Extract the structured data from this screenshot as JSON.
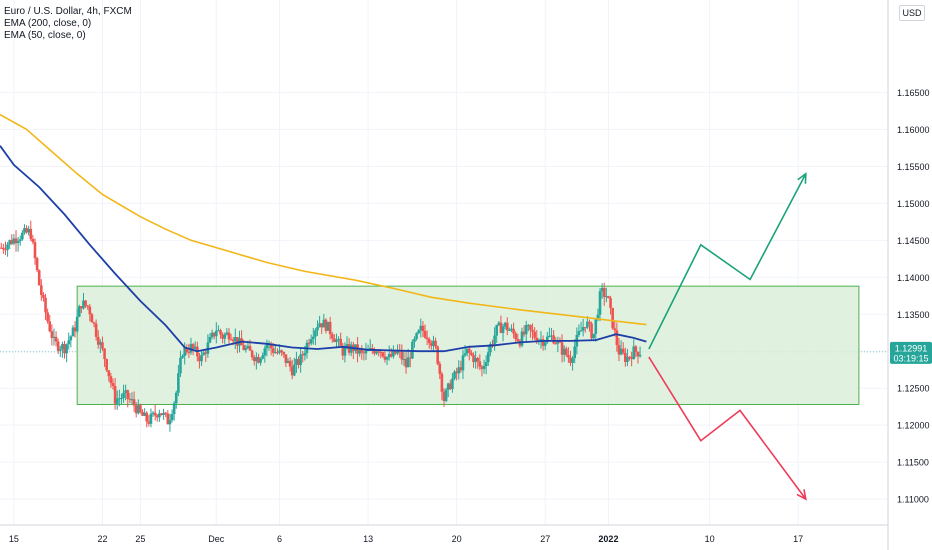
{
  "legend": {
    "title": "Euro / U.S. Dollar, 4h, FXCM",
    "ema200": "EMA (200, close, 0)",
    "ema50": "EMA (50, close, 0)"
  },
  "currency_label": "USD",
  "price_label": {
    "price": "1.12991",
    "countdown": "03:19:15",
    "color": "#26a69a"
  },
  "colors": {
    "up": "#26a69a",
    "down": "#ef5350",
    "ema200": "#f2b619",
    "ema50": "#1c3fa8",
    "box_fill": "#d8eed7",
    "box_border": "#4caf50",
    "bull_arrow": "#1aa37a",
    "bear_arrow": "#ef3b5a"
  },
  "chart_data": {
    "type": "candlestick",
    "symbol": "EURUSD",
    "timeframe": "4h",
    "ylim": [
      1.1065,
      1.1775
    ],
    "y_ticks": [
      "1.11000",
      "1.11500",
      "1.12000",
      "1.12500",
      "1.13000",
      "1.13500",
      "1.14000",
      "1.14500",
      "1.15000",
      "1.15500",
      "1.16000",
      "1.16500"
    ],
    "x_ticks": [
      {
        "label": "15",
        "day": 0
      },
      {
        "label": "22",
        "day": 7
      },
      {
        "label": "25",
        "day": 10
      },
      {
        "label": "Dec",
        "day": 16
      },
      {
        "label": "6",
        "day": 21
      },
      {
        "label": "13",
        "day": 28
      },
      {
        "label": "20",
        "day": 35
      },
      {
        "label": "27",
        "day": 42
      },
      {
        "label": "2022",
        "day": 47,
        "bold": true
      },
      {
        "label": "10",
        "day": 55
      },
      {
        "label": "17",
        "day": 62
      }
    ],
    "x_range_days": [
      -1.1,
      69.1
    ],
    "close_anchors": [
      [
        -1.0,
        1.144
      ],
      [
        0.3,
        1.1455
      ],
      [
        1.3,
        1.1462
      ],
      [
        2.0,
        1.139
      ],
      [
        2.6,
        1.1345
      ],
      [
        3.2,
        1.131
      ],
      [
        4.0,
        1.1305
      ],
      [
        4.8,
        1.133
      ],
      [
        5.3,
        1.1365
      ],
      [
        5.9,
        1.136
      ],
      [
        6.6,
        1.132
      ],
      [
        7.2,
        1.129
      ],
      [
        8.0,
        1.1235
      ],
      [
        8.8,
        1.124
      ],
      [
        9.4,
        1.123
      ],
      [
        10.0,
        1.1215
      ],
      [
        10.6,
        1.1205
      ],
      [
        11.5,
        1.122
      ],
      [
        12.2,
        1.1205
      ],
      [
        12.8,
        1.124
      ],
      [
        13.3,
        1.13
      ],
      [
        14.0,
        1.1305
      ],
      [
        14.8,
        1.129
      ],
      [
        15.4,
        1.131
      ],
      [
        16.0,
        1.133
      ],
      [
        16.5,
        1.132
      ],
      [
        17.1,
        1.1325
      ],
      [
        17.8,
        1.131
      ],
      [
        18.5,
        1.13
      ],
      [
        19.3,
        1.129
      ],
      [
        20.0,
        1.131
      ],
      [
        20.6,
        1.13
      ],
      [
        21.2,
        1.1295
      ],
      [
        22.0,
        1.1275
      ],
      [
        22.7,
        1.129
      ],
      [
        23.4,
        1.132
      ],
      [
        24.1,
        1.134
      ],
      [
        24.7,
        1.1335
      ],
      [
        25.3,
        1.132
      ],
      [
        26.0,
        1.13
      ],
      [
        26.8,
        1.1305
      ],
      [
        27.5,
        1.1295
      ],
      [
        28.2,
        1.13
      ],
      [
        28.8,
        1.1305
      ],
      [
        29.6,
        1.129
      ],
      [
        30.4,
        1.13
      ],
      [
        31.0,
        1.128
      ],
      [
        31.6,
        1.131
      ],
      [
        32.2,
        1.133
      ],
      [
        32.8,
        1.132
      ],
      [
        33.4,
        1.13
      ],
      [
        34.0,
        1.1235
      ],
      [
        34.6,
        1.126
      ],
      [
        35.2,
        1.1275
      ],
      [
        35.8,
        1.13
      ],
      [
        36.4,
        1.129
      ],
      [
        37.0,
        1.1275
      ],
      [
        37.6,
        1.1305
      ],
      [
        38.2,
        1.133
      ],
      [
        38.8,
        1.1335
      ],
      [
        39.4,
        1.1325
      ],
      [
        40.0,
        1.1315
      ],
      [
        40.6,
        1.133
      ],
      [
        41.2,
        1.132
      ],
      [
        41.8,
        1.1315
      ],
      [
        42.6,
        1.132
      ],
      [
        43.4,
        1.13
      ],
      [
        44.0,
        1.129
      ],
      [
        44.6,
        1.132
      ],
      [
        45.2,
        1.134
      ],
      [
        45.8,
        1.132
      ],
      [
        46.4,
        1.138
      ],
      [
        46.9,
        1.1375
      ],
      [
        47.3,
        1.134
      ],
      [
        47.8,
        1.13
      ],
      [
        48.4,
        1.129
      ],
      [
        49.0,
        1.13
      ],
      [
        49.6,
        1.1299
      ]
    ],
    "ema200": [
      [
        -1.1,
        1.162
      ],
      [
        1,
        1.16
      ],
      [
        3,
        1.157
      ],
      [
        5,
        1.154
      ],
      [
        7,
        1.1512
      ],
      [
        10,
        1.1482
      ],
      [
        12,
        1.1465
      ],
      [
        14,
        1.145
      ],
      [
        17,
        1.1435
      ],
      [
        20,
        1.142
      ],
      [
        23,
        1.1408
      ],
      [
        27,
        1.1396
      ],
      [
        30,
        1.1385
      ],
      [
        33,
        1.1373
      ],
      [
        36,
        1.1365
      ],
      [
        40,
        1.1356
      ],
      [
        44,
        1.1348
      ],
      [
        47,
        1.1342
      ],
      [
        50,
        1.1336
      ]
    ],
    "ema50": [
      [
        -1.1,
        1.1578
      ],
      [
        0,
        1.1552
      ],
      [
        2,
        1.1522
      ],
      [
        4,
        1.1485
      ],
      [
        6,
        1.1444
      ],
      [
        8,
        1.1405
      ],
      [
        10,
        1.1368
      ],
      [
        12,
        1.1335
      ],
      [
        13.5,
        1.1305
      ],
      [
        14.5,
        1.13
      ],
      [
        16,
        1.1305
      ],
      [
        18,
        1.1313
      ],
      [
        20,
        1.131
      ],
      [
        22,
        1.1305
      ],
      [
        24,
        1.1303
      ],
      [
        26,
        1.1306
      ],
      [
        28,
        1.1302
      ],
      [
        30,
        1.1301
      ],
      [
        32,
        1.13
      ],
      [
        34,
        1.13
      ],
      [
        36,
        1.1306
      ],
      [
        38,
        1.1308
      ],
      [
        40,
        1.1312
      ],
      [
        42,
        1.1314
      ],
      [
        44,
        1.1314
      ],
      [
        46,
        1.1315
      ],
      [
        47.6,
        1.1323
      ],
      [
        49,
        1.1318
      ],
      [
        50,
        1.1313
      ]
    ],
    "range_box": {
      "x": [
        5.0,
        66.8
      ],
      "y": [
        1.1228,
        1.1388
      ]
    },
    "bullish_path": [
      [
        50.2,
        1.1303
      ],
      [
        54.3,
        1.1444
      ],
      [
        58.2,
        1.1397
      ],
      [
        62.6,
        1.154
      ]
    ],
    "bearish_path": [
      [
        50.2,
        1.1292
      ],
      [
        54.3,
        1.1179
      ],
      [
        57.4,
        1.122
      ],
      [
        62.6,
        1.11
      ]
    ],
    "current_price": 1.12991,
    "legend": [
      "EMA (200, close, 0)",
      "EMA (50, close, 0)"
    ]
  }
}
